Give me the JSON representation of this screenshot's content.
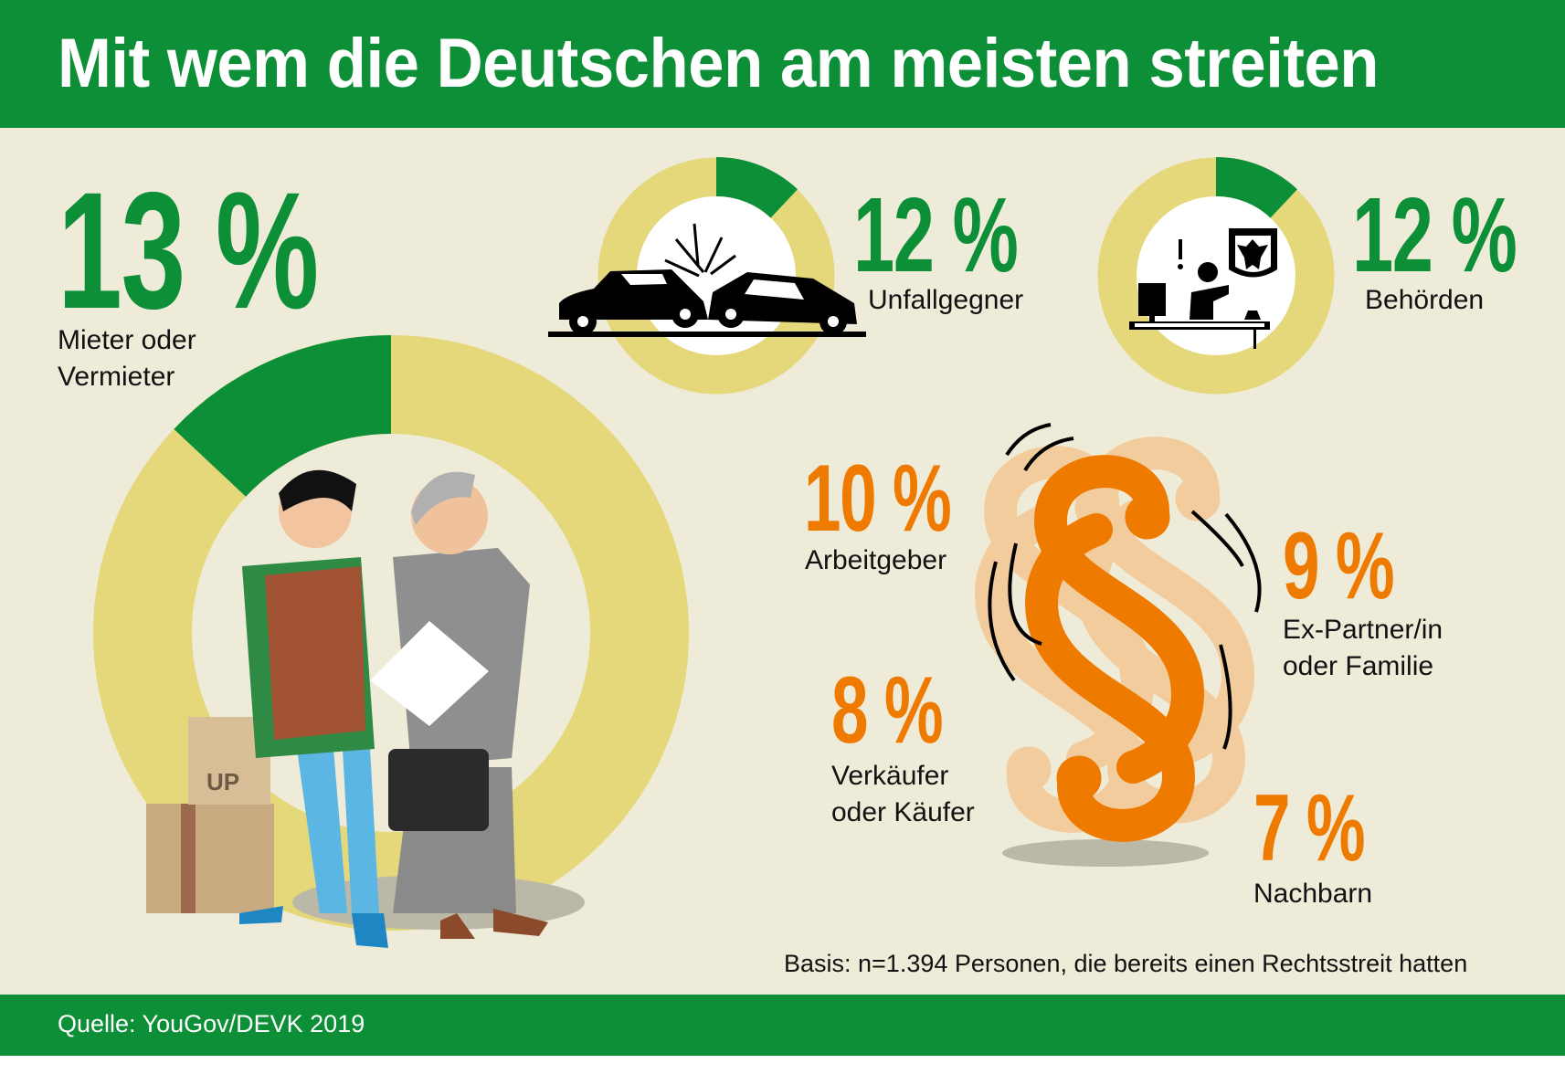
{
  "header": {
    "title": "Mit wem die Deutschen am meisten streiten"
  },
  "colors": {
    "green": "#0d8f38",
    "yellow": "#e5d87a",
    "orange": "#ee7a00",
    "background": "#efebd9"
  },
  "stats": [
    {
      "value": "13 %",
      "label_line1": "Mieter oder",
      "label_line2": "Vermieter",
      "share": 13,
      "icon": "tenant-landlord-illustration"
    },
    {
      "value": "12 %",
      "label_line1": "Unfallgegner",
      "share": 12,
      "icon": "car-crash-icon"
    },
    {
      "value": "12 %",
      "label_line1": "Behörden",
      "share": 12,
      "icon": "government-office-icon"
    },
    {
      "value": "10 %",
      "label_line1": "Arbeitgeber",
      "share": 10
    },
    {
      "value": "9 %",
      "label_line1": "Ex-Partner/in",
      "label_line2": "oder Familie",
      "share": 9
    },
    {
      "value": "8 %",
      "label_line1": "Verkäufer",
      "label_line2": "oder Käufer",
      "share": 8
    },
    {
      "value": "7 %",
      "label_line1": "Nachbarn",
      "share": 7
    }
  ],
  "box_label": "UP",
  "basis": "Basis: n=1.394 Personen, die bereits einen Rechtsstreit hatten",
  "footer": {
    "source": "Quelle: YouGov/DEVK 2019"
  }
}
